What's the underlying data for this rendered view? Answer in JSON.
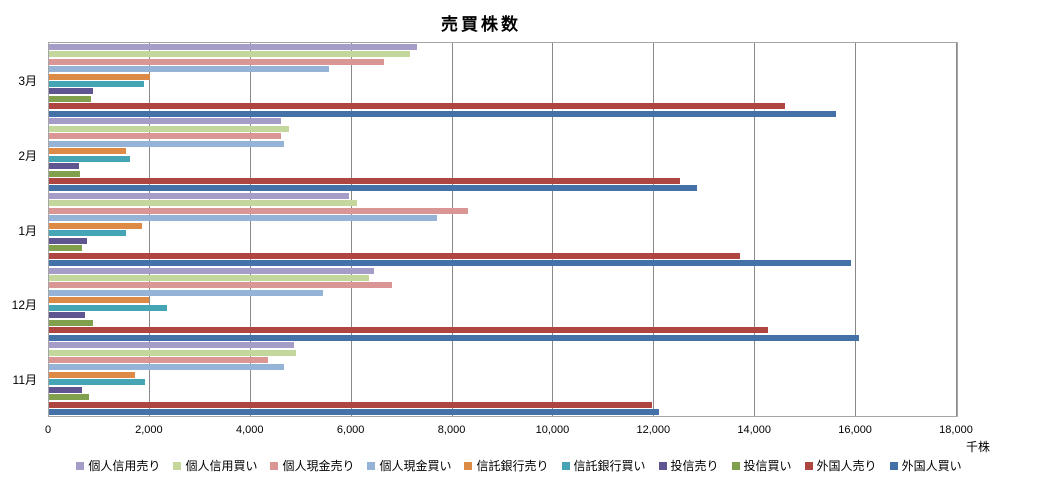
{
  "chart_data": {
    "type": "bar",
    "orientation": "horizontal",
    "title": "売買株数",
    "xlabel": "千株",
    "xlim": [
      0,
      18000
    ],
    "x_ticks": [
      0,
      2000,
      4000,
      6000,
      8000,
      10000,
      12000,
      14000,
      16000,
      18000
    ],
    "x_tick_labels": [
      "0",
      "2,000",
      "4,000",
      "6,000",
      "8,000",
      "10,000",
      "12,000",
      "14,000",
      "16,000",
      "18,000"
    ],
    "grid": true,
    "legend_position": "bottom",
    "categories": [
      "3月",
      "2月",
      "1月",
      "12月",
      "11月"
    ],
    "series": [
      {
        "name": "個人信用売り",
        "color": "#a59cc8",
        "values": [
          7300,
          4600,
          5950,
          6450,
          4850
        ]
      },
      {
        "name": "個人信用買い",
        "color": "#c3d69b",
        "values": [
          7150,
          4750,
          6100,
          6350,
          4900
        ]
      },
      {
        "name": "個人現金売り",
        "color": "#d99694",
        "values": [
          6650,
          4600,
          8300,
          6800,
          4350
        ]
      },
      {
        "name": "個人現金買い",
        "color": "#95b3d7",
        "values": [
          5550,
          4650,
          7700,
          5430,
          4650
        ]
      },
      {
        "name": "信託銀行売り",
        "color": "#dd8a47",
        "values": [
          2000,
          1530,
          1850,
          1980,
          1700
        ]
      },
      {
        "name": "信託銀行買い",
        "color": "#45a5b5",
        "values": [
          1880,
          1600,
          1530,
          2330,
          1900
        ]
      },
      {
        "name": "投信売り",
        "color": "#5f5591",
        "values": [
          870,
          600,
          760,
          720,
          660
        ]
      },
      {
        "name": "投信買い",
        "color": "#80a04e",
        "values": [
          840,
          620,
          660,
          870,
          790
        ]
      },
      {
        "name": "外国人売り",
        "color": "#ae4540",
        "values": [
          14600,
          12500,
          13700,
          14250,
          11950
        ]
      },
      {
        "name": "外国人買い",
        "color": "#4472a8",
        "values": [
          15600,
          12850,
          15900,
          16050,
          12100
        ]
      }
    ]
  }
}
